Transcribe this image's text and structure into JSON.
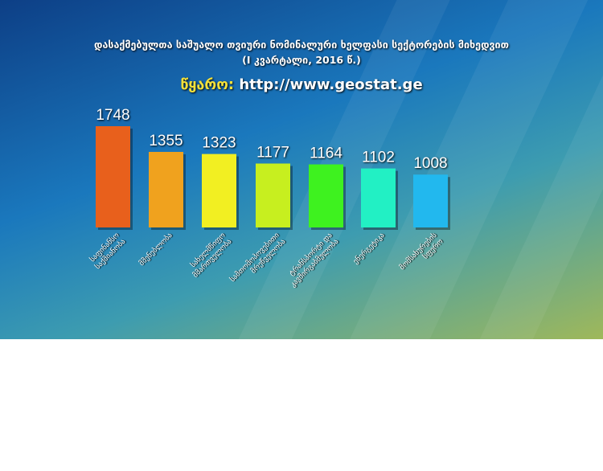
{
  "chart_data": {
    "type": "bar",
    "title": "დასაქმებულთა საშუალო თვიური ნომინალური ხელფასი სექტორების მიხედვით",
    "subtitle": "(I კვარტალი, 2016 წ.)",
    "source_label": "წყარო:",
    "source_url": "http://www.geostat.ge",
    "categories": [
      "საფინანსო საქმიანობა",
      "მშენებლობა",
      "სახელმწიფო მმართველობა",
      "სამთომოპოვებითი მრეწველობა",
      "ტრანსპორტი და კავშირგაბმულობა",
      "ენერგეტიკა",
      "მომსახურების სფერო"
    ],
    "values": [
      1748,
      1355,
      1323,
      1177,
      1164,
      1102,
      1008
    ],
    "colors": [
      "#e8601c",
      "#f0a21e",
      "#f2ef22",
      "#c7ef1f",
      "#3ef21f",
      "#22f0c4",
      "#22b8ee"
    ],
    "ylim": [
      200,
      1800
    ],
    "grid": false
  }
}
